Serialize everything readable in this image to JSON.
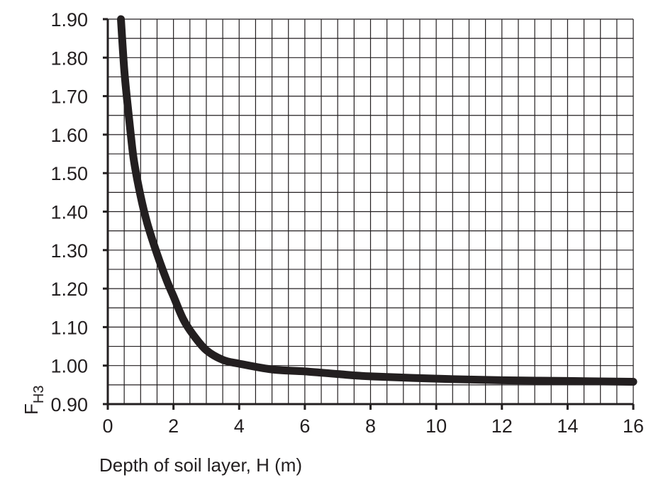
{
  "chart_data": {
    "type": "line",
    "xlabel": "Depth of soil layer, H (m)",
    "ylabel_main": "F",
    "ylabel_sub": "H3",
    "xlim": [
      0,
      16
    ],
    "ylim": [
      0.9,
      1.9
    ],
    "x_ticks": [
      0,
      2,
      4,
      6,
      8,
      10,
      12,
      14,
      16
    ],
    "x_tick_labels": [
      "0",
      "2",
      "4",
      "6",
      "8",
      "10",
      "12",
      "14",
      "16"
    ],
    "y_ticks": [
      0.9,
      1.0,
      1.1,
      1.2,
      1.3,
      1.4,
      1.5,
      1.6,
      1.7,
      1.8,
      1.9
    ],
    "y_tick_labels": [
      "0.90",
      "1.00",
      "1.10",
      "1.20",
      "1.30",
      "1.40",
      "1.50",
      "1.60",
      "1.70",
      "1.80",
      "1.90"
    ],
    "grid": true,
    "grid_x_step": 0.5,
    "grid_y_step": 0.05,
    "series": [
      {
        "color": "#231f20",
        "x": [
          0.4,
          0.5,
          0.6,
          0.7,
          0.8,
          1.0,
          1.2,
          1.5,
          1.8,
          2.0,
          2.3,
          2.6,
          3.0,
          3.5,
          4.0,
          5.0,
          6.0,
          7.0,
          8.0,
          10.0,
          12.0,
          14.0,
          16.0
        ],
        "y": [
          1.9,
          1.77,
          1.68,
          1.6,
          1.53,
          1.44,
          1.37,
          1.29,
          1.22,
          1.18,
          1.12,
          1.08,
          1.04,
          1.015,
          1.005,
          0.99,
          0.985,
          0.978,
          0.972,
          0.966,
          0.962,
          0.96,
          0.958
        ]
      }
    ]
  }
}
